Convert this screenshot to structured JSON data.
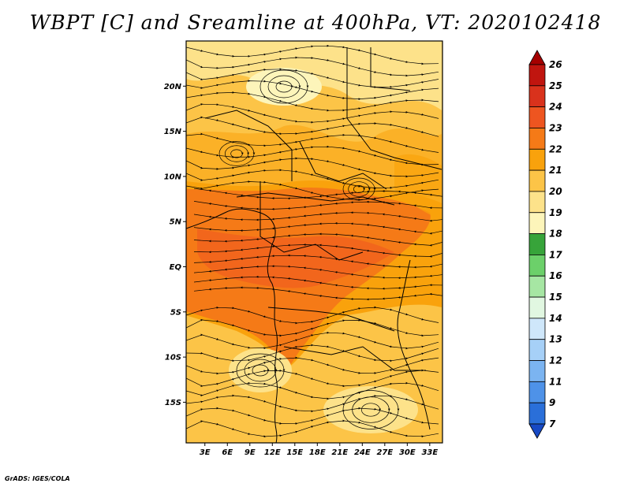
{
  "title": "WBPT [C] and Sreamline at 400hPa, VT: 2020102418",
  "credit": "GrADS: IGES/COLA",
  "map": {
    "lat_ticks": [
      {
        "label": "20N",
        "lat": 20
      },
      {
        "label": "15N",
        "lat": 15
      },
      {
        "label": "10N",
        "lat": 10
      },
      {
        "label": "5N",
        "lat": 5
      },
      {
        "label": "EQ",
        "lat": 0
      },
      {
        "label": "5S",
        "lat": -5
      },
      {
        "label": "10S",
        "lat": -10
      },
      {
        "label": "15S",
        "lat": -15
      }
    ],
    "lon_ticks": [
      {
        "label": "3E",
        "lon": 3
      },
      {
        "label": "6E",
        "lon": 6
      },
      {
        "label": "9E",
        "lon": 9
      },
      {
        "label": "12E",
        "lon": 12
      },
      {
        "label": "15E",
        "lon": 15
      },
      {
        "label": "18E",
        "lon": 18
      },
      {
        "label": "21E",
        "lon": 21
      },
      {
        "label": "24E",
        "lon": 24
      },
      {
        "label": "27E",
        "lon": 27
      },
      {
        "label": "30E",
        "lon": 30
      },
      {
        "label": "33E",
        "lon": 33
      }
    ],
    "lon_range": [
      0.5,
      34.7
    ],
    "lat_range": [
      -19.5,
      25
    ]
  },
  "colorbar": {
    "labels": [
      "26",
      "25",
      "24",
      "23",
      "22",
      "21",
      "20",
      "19",
      "18",
      "17",
      "16",
      "15",
      "14",
      "13",
      "12",
      "11",
      "9",
      "7"
    ],
    "colors": [
      "#a50000",
      "#c0150f",
      "#d9321c",
      "#ee5520",
      "#f57a17",
      "#f9a20c",
      "#fcc447",
      "#fde28a",
      "#fdf5ba",
      "#37a43a",
      "#6cd06a",
      "#a6e6a3",
      "#e1f7e1",
      "#cfe7fa",
      "#a6d0f7",
      "#7bb4f1",
      "#4e92e8",
      "#2a6fd9",
      "#1749c4"
    ]
  }
}
